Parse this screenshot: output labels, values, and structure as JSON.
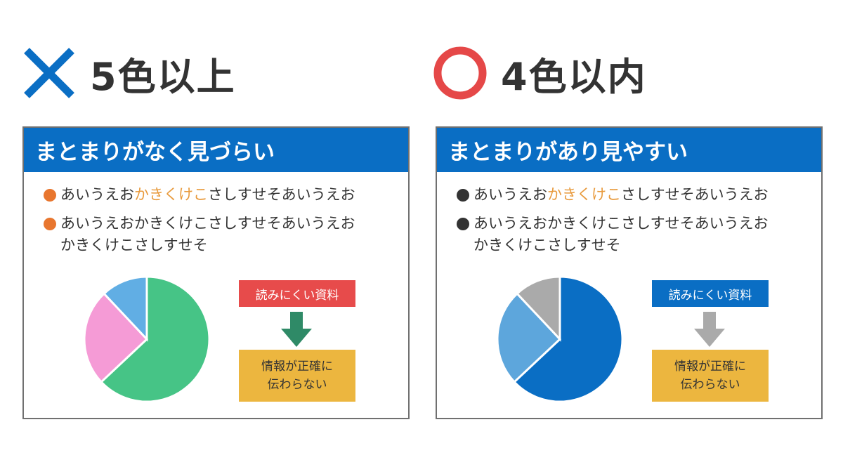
{
  "left": {
    "heading": "5色以上",
    "mark_color": "#0a6ec4",
    "panel_title": "まとまりがなく見づらい",
    "bullet1": {
      "pre": "あいうえお",
      "highlight": "かきくけこ",
      "post": "さしすせそあいうえお"
    },
    "bullet2": {
      "line1": "あいうえおかきくけこさしすせそあいうえお",
      "line2": "かきくけこさしすせそ"
    },
    "label": "読みにくい資料",
    "result": {
      "line1": "情報が正確に",
      "line2": "伝わらない"
    },
    "pie": [
      {
        "share": 0.63,
        "color": "#46c486"
      },
      {
        "share": 0.25,
        "color": "#f59bd6"
      },
      {
        "share": 0.12,
        "color": "#61aee4"
      }
    ],
    "arrow_color": "#2f8a67",
    "bullet_color": "#e8762e"
  },
  "right": {
    "heading": "4色以内",
    "mark_color": "#e54848",
    "panel_title": "まとまりがあり見やすい",
    "bullet1": {
      "pre": "あいうえお",
      "highlight": "かきくけこ",
      "post": "さしすせそあいうえお"
    },
    "bullet2": {
      "line1": "あいうえおかきくけこさしすせそあいうえお",
      "line2": "かきくけこさしすせそ"
    },
    "label": "読みにくい資料",
    "result": {
      "line1": "情報が正確に",
      "line2": "伝わらない"
    },
    "pie": [
      {
        "share": 0.63,
        "color": "#0a6ec4"
      },
      {
        "share": 0.25,
        "color": "#5da6dc"
      },
      {
        "share": 0.12,
        "color": "#aaaaaa"
      }
    ],
    "arrow_color": "#aaaaaa",
    "bullet_color": "#333333"
  }
}
